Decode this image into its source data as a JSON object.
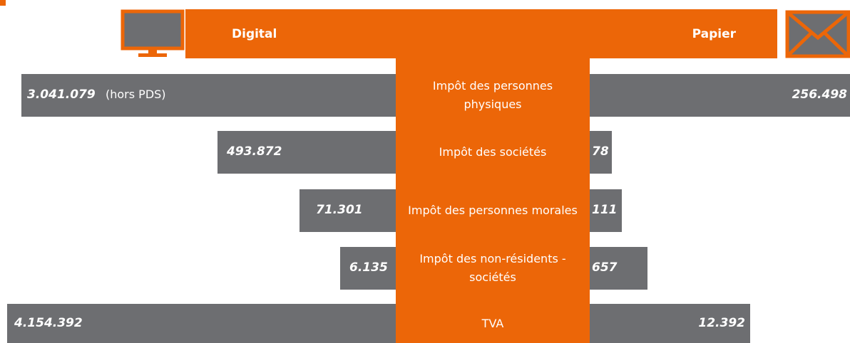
{
  "header": {
    "digital": "Digital",
    "paper": "Papier"
  },
  "rows": [
    {
      "label": "Impôt des personnes physiques",
      "digital": "3.041.079",
      "digital_note": "(hors PDS)",
      "paper": "256.498"
    },
    {
      "label": "Impôt des sociétés",
      "digital": "493.872",
      "paper": "78"
    },
    {
      "label": "Impôt des personnes morales",
      "digital": "71.301",
      "paper": "111"
    },
    {
      "label": "Impôt des non-résidents - sociétés",
      "digital": "6.135",
      "paper": "657"
    },
    {
      "label": "TVA",
      "digital": "4.154.392",
      "paper": "12.392"
    }
  ]
}
